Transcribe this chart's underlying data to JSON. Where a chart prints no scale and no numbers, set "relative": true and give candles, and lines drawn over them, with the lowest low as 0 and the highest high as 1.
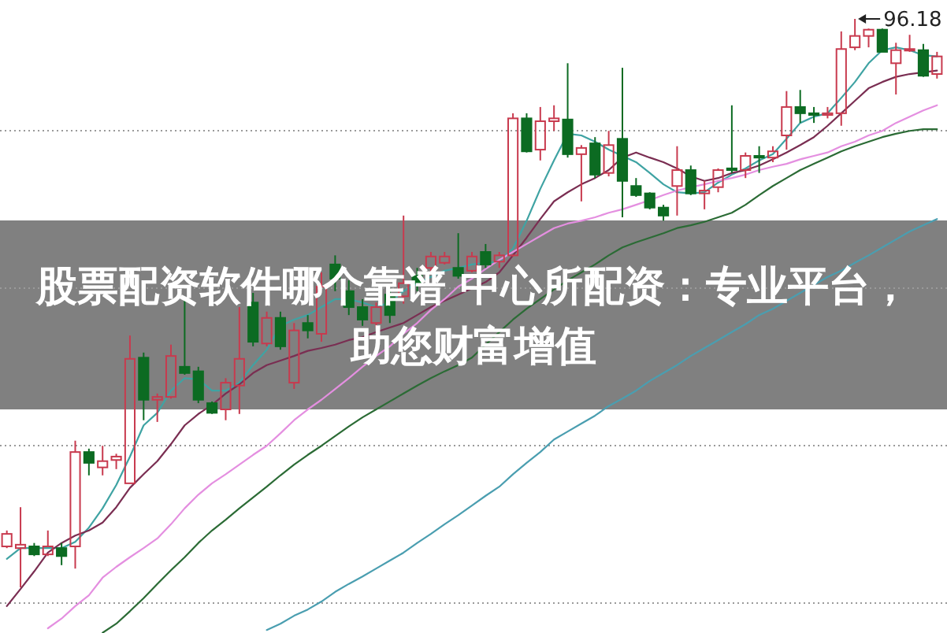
{
  "chart_data": {
    "type": "candlestick",
    "title": "股票配资软件哪个靠谱 中心所配资：专业平台，助您财富增值",
    "relative": true,
    "grid": "y",
    "categories": [
      null,
      null,
      null,
      null,
      null,
      null,
      null,
      null,
      null,
      null,
      null,
      null,
      null,
      null,
      null,
      null,
      null,
      null,
      null,
      null,
      null,
      null,
      null,
      null,
      null,
      null,
      null,
      null,
      null,
      null,
      null,
      null,
      null,
      null,
      null,
      null,
      null,
      null,
      null,
      null,
      null,
      null,
      null,
      null,
      null,
      null,
      null,
      null,
      null,
      null,
      null,
      null,
      null,
      null,
      null,
      null,
      null,
      null,
      null,
      null,
      null,
      null,
      null,
      null,
      null,
      null,
      null,
      null,
      null
    ],
    "ohlc": [
      [
        0.072,
        0.1,
        0.069,
        0.094
      ],
      [
        0.069,
        0.141,
        0,
        0.075
      ],
      [
        0.072,
        0.078,
        0.055,
        0.058
      ],
      [
        0.058,
        0.1,
        0.055,
        0.072
      ],
      [
        0.069,
        0.078,
        0.039,
        0.055
      ],
      [
        0.072,
        0.258,
        0.033,
        0.238
      ],
      [
        0.238,
        0.244,
        0.197,
        0.219
      ],
      [
        0.211,
        0.249,
        0.197,
        0.222
      ],
      [
        0.224,
        0.235,
        0.208,
        0.23
      ],
      [
        0.183,
        0.443,
        0.183,
        0.402
      ],
      [
        0.404,
        0.413,
        0.294,
        0.33
      ],
      [
        0.33,
        0.341,
        0.291,
        0.335
      ],
      [
        0.335,
        0.427,
        0.332,
        0.407
      ],
      [
        0.388,
        0.507,
        0.374,
        0.377
      ],
      [
        0.38,
        0.388,
        0.324,
        0.33
      ],
      [
        0.324,
        0.327,
        0.305,
        0.307
      ],
      [
        0.313,
        0.368,
        0.294,
        0.36
      ],
      [
        0.355,
        0.493,
        0.305,
        0.402
      ],
      [
        0.501,
        0.518,
        0.424,
        0.432
      ],
      [
        0.429,
        0.485,
        0.424,
        0.474
      ],
      [
        0.474,
        0.485,
        0.418,
        0.424
      ],
      [
        0.36,
        0.465,
        0.349,
        0.452
      ],
      [
        0.465,
        0.479,
        0.438,
        0.452
      ],
      [
        0.446,
        0.554,
        0.432,
        0.529
      ],
      [
        0.568,
        0.584,
        0.521,
        0.543
      ],
      [
        0.521,
        0.54,
        0.479,
        0.493
      ],
      [
        0.493,
        0.507,
        0.46,
        0.471
      ],
      [
        0.465,
        0.501,
        0.457,
        0.493
      ],
      [
        0.515,
        0.526,
        0.465,
        0.479
      ],
      [
        0.512,
        0.654,
        0.499,
        0.535
      ],
      [
        0.548,
        0.562,
        0.521,
        0.535
      ],
      [
        0.562,
        0.59,
        0.554,
        0.582
      ],
      [
        0.571,
        0.59,
        0.568,
        0.582
      ],
      [
        0.562,
        0.623,
        0.543,
        0.548
      ],
      [
        0.557,
        0.59,
        0.554,
        0.582
      ],
      [
        0.59,
        0.604,
        0.562,
        0.568
      ],
      [
        0.573,
        0.59,
        0.562,
        0.584
      ],
      [
        0.584,
        0.834,
        0.582,
        0.825
      ],
      [
        0.825,
        0.834,
        0.765,
        0.767
      ],
      [
        0.77,
        0.845,
        0.751,
        0.82
      ],
      [
        0.82,
        0.848,
        0.803,
        0.825
      ],
      [
        0.823,
        0.922,
        0.756,
        0.762
      ],
      [
        0.762,
        0.778,
        0.679,
        0.773
      ],
      [
        0.781,
        0.792,
        0.72,
        0.726
      ],
      [
        0.729,
        0.803,
        0.723,
        0.778
      ],
      [
        0.789,
        0.914,
        0.651,
        0.715
      ],
      [
        0.706,
        0.72,
        0.687,
        0.69
      ],
      [
        0.693,
        0.695,
        0.665,
        0.668
      ],
      [
        0.668,
        0.673,
        0.645,
        0.654
      ],
      [
        0.706,
        0.776,
        0.654,
        0.734
      ],
      [
        0.734,
        0.742,
        0.69,
        0.693
      ],
      [
        0.693,
        0.715,
        0.665,
        0.698
      ],
      [
        0.704,
        0.737,
        0.695,
        0.734
      ],
      [
        0.737,
        0.848,
        0.729,
        0.734
      ],
      [
        0.734,
        0.765,
        0.72,
        0.759
      ],
      [
        0.759,
        0.776,
        0.729,
        0.756
      ],
      [
        0.756,
        0.776,
        0.748,
        0.767
      ],
      [
        0.795,
        0.873,
        0.77,
        0.845
      ],
      [
        0.845,
        0.875,
        0.817,
        0.834
      ],
      [
        0.834,
        0.845,
        0.817,
        0.831
      ],
      [
        0.831,
        0.845,
        0.825,
        0.834
      ],
      [
        0.834,
        0.978,
        0.812,
        0.947
      ],
      [
        0.95,
        1,
        0.945,
        0.97
      ],
      [
        0.97,
        0.983,
        0.95,
        0.981
      ],
      [
        0.981,
        0.983,
        0.942,
        0.942
      ],
      [
        0.922,
        0.958,
        0.867,
        0.945
      ],
      [
        0.945,
        0.972,
        0.942,
        0.947
      ],
      [
        0.945,
        0.956,
        0.898,
        0.9
      ],
      [
        0.903,
        0.942,
        0.895,
        0.934
      ]
    ],
    "colors": [
      "#c83a4e",
      "#c83a4e",
      "#0c6b22",
      "#c83a4e",
      "#0c6b22",
      "#c83a4e",
      "#0c6b22",
      "#c83a4e",
      "#c83a4e",
      "#c83a4e",
      "#0c6b22",
      "#c83a4e",
      "#c83a4e",
      "#0c6b22",
      "#0c6b22",
      "#0c6b22",
      "#c83a4e",
      "#c83a4e",
      "#0c6b22",
      "#c83a4e",
      "#0c6b22",
      "#c83a4e",
      "#0c6b22",
      "#c83a4e",
      "#0c6b22",
      "#0c6b22",
      "#0c6b22",
      "#c83a4e",
      "#0c6b22",
      "#c83a4e",
      "#0c6b22",
      "#c83a4e",
      "#c83a4e",
      "#0c6b22",
      "#c83a4e",
      "#0c6b22",
      "#c83a4e",
      "#c83a4e",
      "#0c6b22",
      "#c83a4e",
      "#c83a4e",
      "#0c6b22",
      "#c83a4e",
      "#0c6b22",
      "#c83a4e",
      "#0c6b22",
      "#0c6b22",
      "#0c6b22",
      "#0c6b22",
      "#c83a4e",
      "#0c6b22",
      "#c83a4e",
      "#c83a4e",
      "#0c6b22",
      "#c83a4e",
      "#0c6b22",
      "#c83a4e",
      "#c83a4e",
      "#0c6b22",
      "#0c6b22",
      "#c83a4e",
      "#c83a4e",
      "#c83a4e",
      "#c83a4e",
      "#0c6b22",
      "#c83a4e",
      "#c83a4e",
      "#0c6b22",
      "#c83a4e"
    ],
    "series": [
      {
        "type": "line",
        "color": "#3fa3a3",
        "values": [
          0.05,
          0.069,
          0.069,
          0.069,
          0.069,
          0.08,
          0.105,
          0.139,
          0.18,
          0.23,
          0.285,
          0.307,
          0.346,
          0.368,
          0.366,
          0.346,
          0.346,
          0.36,
          0.391,
          0.418,
          0.46,
          0.471,
          0.479,
          0.493,
          0.507,
          0.507,
          0.501,
          0.493,
          0.501,
          0.521,
          0.535,
          0.546,
          0.557,
          0.562,
          0.568,
          0.571,
          0.573,
          0.596,
          0.645,
          0.701,
          0.751,
          0.798,
          0.795,
          0.784,
          0.77,
          0.759,
          0.748,
          0.729,
          0.709,
          0.695,
          0.693,
          0.695,
          0.712,
          0.726,
          0.737,
          0.751,
          0.762,
          0.789,
          0.817,
          0.828,
          0.834,
          0.861,
          0.889,
          0.922,
          0.945,
          0.95,
          0.945,
          0.936,
          0.934
        ]
      },
      {
        "type": "line",
        "color": "#7a2e52",
        "values": [
          -0.033,
          -0.003,
          0.028,
          0.061,
          0.078,
          0.091,
          0.1,
          0.114,
          0.141,
          0.175,
          0.199,
          0.222,
          0.252,
          0.285,
          0.305,
          0.321,
          0.341,
          0.357,
          0.377,
          0.391,
          0.399,
          0.407,
          0.416,
          0.421,
          0.427,
          0.435,
          0.44,
          0.449,
          0.457,
          0.465,
          0.479,
          0.493,
          0.504,
          0.515,
          0.526,
          0.537,
          0.554,
          0.584,
          0.615,
          0.648,
          0.679,
          0.695,
          0.709,
          0.72,
          0.734,
          0.756,
          0.765,
          0.756,
          0.748,
          0.737,
          0.723,
          0.715,
          0.72,
          0.729,
          0.734,
          0.742,
          0.753,
          0.765,
          0.778,
          0.792,
          0.812,
          0.834,
          0.856,
          0.878,
          0.889,
          0.898,
          0.903,
          0.906,
          0.909
        ]
      },
      {
        "type": "line",
        "color": "#e48fe0",
        "values": [
          null,
          null,
          null,
          -0.072,
          -0.055,
          -0.033,
          -0.014,
          0.017,
          0.036,
          0.053,
          0.069,
          0.086,
          0.111,
          0.139,
          0.163,
          0.183,
          0.199,
          0.216,
          0.233,
          0.249,
          0.271,
          0.294,
          0.313,
          0.33,
          0.349,
          0.368,
          0.388,
          0.407,
          0.424,
          0.446,
          0.465,
          0.488,
          0.507,
          0.529,
          0.543,
          0.56,
          0.576,
          0.59,
          0.604,
          0.618,
          0.632,
          0.64,
          0.645,
          0.651,
          0.659,
          0.665,
          0.673,
          0.681,
          0.69,
          0.698,
          0.704,
          0.709,
          0.715,
          0.72,
          0.726,
          0.734,
          0.74,
          0.745,
          0.753,
          0.759,
          0.765,
          0.776,
          0.784,
          0.795,
          0.803,
          0.817,
          0.828,
          0.839,
          0.848
        ]
      },
      {
        "type": "line",
        "color": "#2b6b35",
        "values": [
          null,
          null,
          null,
          null,
          null,
          null,
          null,
          -0.08,
          -0.064,
          -0.042,
          -0.019,
          0.006,
          0.03,
          0.053,
          0.078,
          0.1,
          0.119,
          0.139,
          0.158,
          0.177,
          0.197,
          0.216,
          0.233,
          0.249,
          0.266,
          0.283,
          0.299,
          0.313,
          0.327,
          0.341,
          0.355,
          0.368,
          0.38,
          0.391,
          0.404,
          0.427,
          0.449,
          0.471,
          0.49,
          0.507,
          0.524,
          0.54,
          0.554,
          0.568,
          0.584,
          0.598,
          0.607,
          0.615,
          0.623,
          0.632,
          0.637,
          0.643,
          0.651,
          0.659,
          0.673,
          0.69,
          0.706,
          0.72,
          0.734,
          0.745,
          0.756,
          0.767,
          0.776,
          0.784,
          0.792,
          0.798,
          0.803,
          0.806,
          0.806
        ]
      },
      {
        "type": "line",
        "color": "#4a9eb0",
        "values": [
          null,
          null,
          null,
          null,
          null,
          null,
          null,
          null,
          null,
          null,
          null,
          null,
          null,
          null,
          null,
          null,
          null,
          null,
          null,
          -0.075,
          -0.064,
          -0.05,
          -0.039,
          -0.025,
          -0.008,
          0.006,
          0.019,
          0.033,
          0.047,
          0.061,
          0.078,
          0.094,
          0.111,
          0.127,
          0.144,
          0.161,
          0.177,
          0.199,
          0.219,
          0.238,
          0.26,
          0.274,
          0.288,
          0.302,
          0.319,
          0.332,
          0.346,
          0.363,
          0.377,
          0.391,
          0.407,
          0.421,
          0.435,
          0.449,
          0.463,
          0.479,
          0.49,
          0.504,
          0.518,
          0.532,
          0.546,
          0.557,
          0.571,
          0.584,
          0.598,
          0.612,
          0.626,
          0.637,
          0.648
        ]
      }
    ],
    "annotations": [
      "96.18"
    ]
  }
}
